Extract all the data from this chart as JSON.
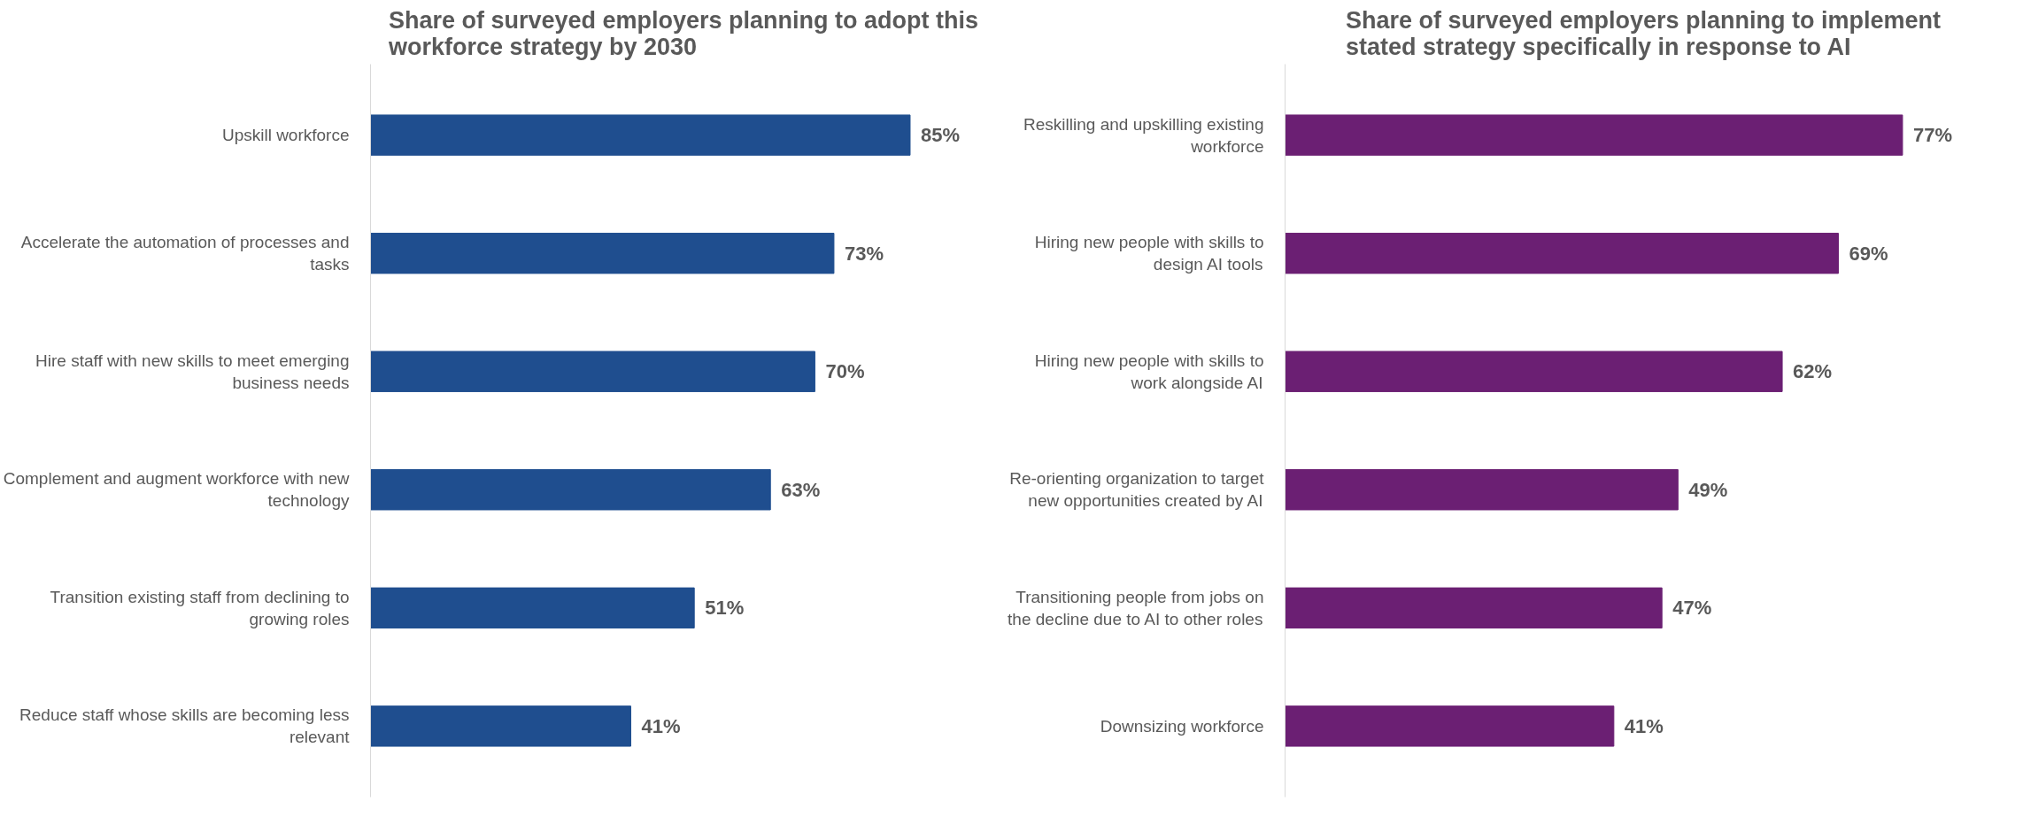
{
  "chart_data": [
    {
      "type": "bar",
      "orientation": "horizontal",
      "title": "Share of surveyed employers planning to adopt this workforce strategy by 2030",
      "categories": [
        "Upskill workforce",
        "Accelerate the automation of processes and tasks",
        "Hire staff with new skills to meet emerging business needs",
        "Complement and augment workforce with new technology",
        "Transition existing staff from declining to growing roles",
        "Reduce staff whose skills are becoming less relevant"
      ],
      "values": [
        85,
        73,
        70,
        63,
        51,
        41
      ],
      "value_labels": [
        "85%",
        "73%",
        "70%",
        "63%",
        "51%",
        "41%"
      ],
      "color": "#1f4e8f",
      "grid": false
    },
    {
      "type": "bar",
      "orientation": "horizontal",
      "title": "Share of surveyed employers planning to implement stated strategy specifically in response to AI",
      "categories": [
        "Reskilling and upskilling existing workforce",
        "Hiring new people with skills to design AI tools",
        "Hiring new people with skills to work alongside AI",
        "Re-orienting organization to target new opportunities created by AI",
        "Transitioning people from jobs on the decline due to AI to other roles",
        "Downsizing workforce"
      ],
      "values": [
        77,
        69,
        62,
        49,
        47,
        41
      ],
      "value_labels": [
        "77%",
        "69%",
        "62%",
        "49%",
        "47%",
        "41%"
      ],
      "color": "#6b1f73",
      "grid": false
    }
  ]
}
